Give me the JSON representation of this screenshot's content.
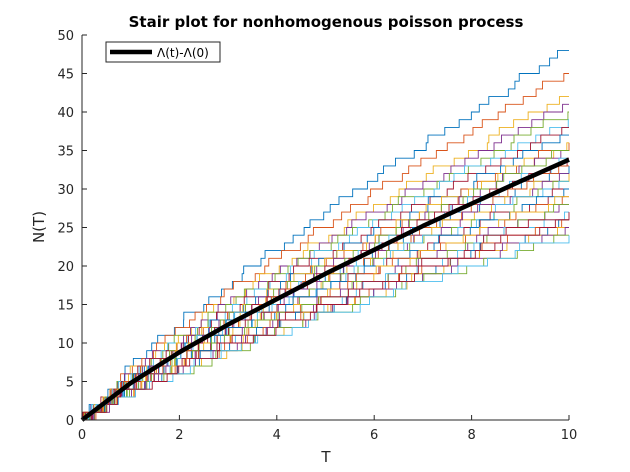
{
  "chart_data": {
    "type": "line",
    "title": "Stair plot for nonhomogenous poisson process",
    "xlabel": "T",
    "ylabel": "N(T)",
    "xlim": [
      0,
      10
    ],
    "ylim": [
      0,
      50
    ],
    "xticks": [
      0,
      2,
      4,
      6,
      8,
      10
    ],
    "yticks": [
      0,
      5,
      10,
      15,
      20,
      25,
      30,
      35,
      40,
      45,
      50
    ],
    "grid": false,
    "legend_position": "top-left",
    "legend": [
      "Λ(t)-Λ(0)"
    ],
    "mean_curve": {
      "name": "Λ(t)-Λ(0)",
      "color": "#000000",
      "x": [
        0,
        1,
        2,
        3,
        4,
        5,
        6,
        7,
        8,
        9,
        10
      ],
      "y": [
        0,
        4.8,
        8.8,
        12.4,
        15.7,
        19.0,
        22.1,
        25.2,
        28.1,
        31.0,
        33.8
      ]
    },
    "sample_paths": {
      "count": 35,
      "colors": [
        "#0072BD",
        "#D95319",
        "#EDB120",
        "#7E2F8E",
        "#77AC30",
        "#4DBEEE",
        "#A2142F"
      ],
      "final_counts": [
        48,
        45,
        42,
        41,
        40,
        39,
        38,
        37,
        36,
        36,
        35,
        35,
        34,
        34,
        33,
        33,
        32,
        32,
        31,
        31,
        30,
        30,
        29,
        29,
        28,
        28,
        27,
        27,
        26,
        26,
        25,
        25,
        24,
        24,
        26
      ]
    }
  }
}
